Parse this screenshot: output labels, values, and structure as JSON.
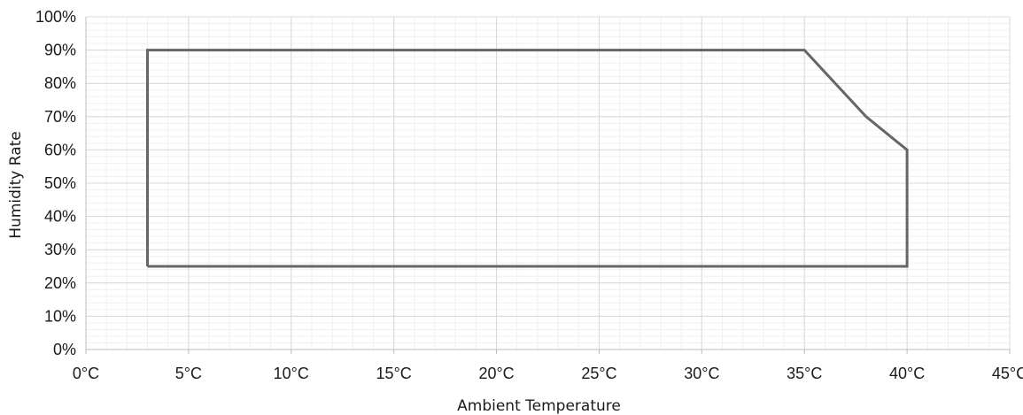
{
  "chart_data": {
    "type": "line",
    "title": "",
    "xlabel": "Ambient Temperature",
    "ylabel": "Humidity Rate",
    "xlim": [
      0,
      45
    ],
    "ylim": [
      0,
      100
    ],
    "x_ticks": [
      "0°C",
      "5°C",
      "10°C",
      "15°C",
      "20°C",
      "25°C",
      "30°C",
      "35°C",
      "40°C",
      "45°C"
    ],
    "y_ticks": [
      "0%",
      "10%",
      "20%",
      "30%",
      "40%",
      "50%",
      "60%",
      "70%",
      "80%",
      "90%",
      "100%"
    ],
    "x_tick_values": [
      0,
      5,
      10,
      15,
      20,
      25,
      30,
      35,
      40,
      45
    ],
    "y_tick_values": [
      0,
      10,
      20,
      30,
      40,
      50,
      60,
      70,
      80,
      90,
      100
    ],
    "grid": true,
    "legend": "none",
    "series": [
      {
        "color": "#666666",
        "points": [
          {
            "x": 3,
            "y": 25
          },
          {
            "x": 3,
            "y": 90
          },
          {
            "x": 35,
            "y": 90
          },
          {
            "x": 38,
            "y": 70
          },
          {
            "x": 40,
            "y": 60
          },
          {
            "x": 40,
            "y": 25
          },
          {
            "x": 3,
            "y": 25
          }
        ]
      }
    ]
  }
}
